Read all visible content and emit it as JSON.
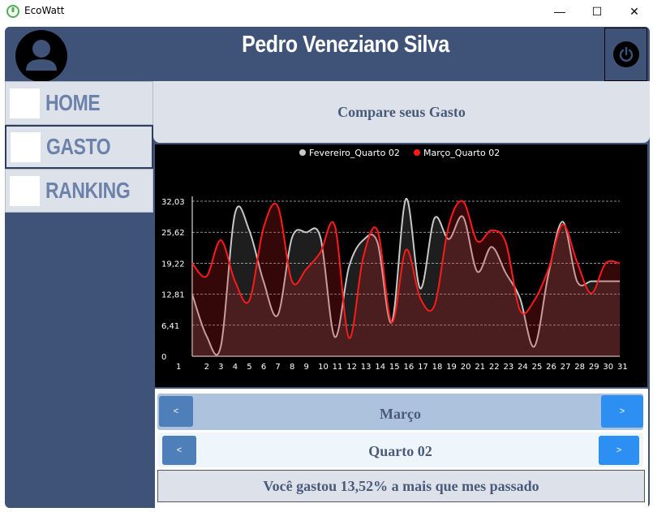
{
  "window": {
    "title": "EcoWatt",
    "min_glyph": "—",
    "max_glyph": "☐",
    "close_glyph": "✕"
  },
  "header": {
    "user_name": "Pedro Veneziano Silva",
    "avatar_icon": "user-avatar-icon",
    "power_icon": "power-icon"
  },
  "sidebar": {
    "items": [
      {
        "label": "HOME",
        "active": false
      },
      {
        "label": "GASTO",
        "active": true
      },
      {
        "label": "RANKING",
        "active": false
      }
    ]
  },
  "compare": {
    "title": "Compare seus Gasto"
  },
  "month_nav": {
    "prev": "<",
    "value": "Março",
    "next": ">"
  },
  "quarter_nav": {
    "prev": "<",
    "value": "Quarto 02",
    "next": ">"
  },
  "result": {
    "text": "Você gastou 13,52% a mais que mes passado"
  },
  "colors": {
    "frame": "#3f5378",
    "series_feb": "#c8c8c8",
    "series_mar": "#ff1a1a",
    "nav_text": "#6d82ab"
  },
  "chart_data": {
    "type": "area",
    "legend_position": "top-center",
    "grid": true,
    "x": [
      1,
      2,
      3,
      4,
      5,
      6,
      7,
      8,
      9,
      10,
      11,
      12,
      13,
      14,
      15,
      16,
      17,
      18,
      19,
      20,
      21,
      22,
      23,
      24,
      25,
      26,
      27,
      28,
      29,
      30,
      31
    ],
    "x_tick_labels": [
      "1",
      "2",
      "3",
      "4",
      "5",
      "6",
      "7",
      "8",
      "9",
      "10",
      "11",
      "12",
      "13",
      "14",
      "15",
      "16",
      "17",
      "18",
      "19",
      "20",
      "21",
      "22",
      "23",
      "24",
      "25",
      "26",
      "27",
      "28",
      "29",
      "30",
      "31"
    ],
    "y_tick_labels": [
      "0",
      "6,41",
      "12,81",
      "19,22",
      "25,62",
      "32,03"
    ],
    "y_ticks": [
      0,
      6.41,
      12.81,
      19.22,
      25.62,
      32.03
    ],
    "ylim": [
      0,
      32.03
    ],
    "series": [
      {
        "name": "Fevereiro_Quarto 02",
        "values": [
          12.8,
          4.2,
          2,
          29.5,
          26,
          15.5,
          8.5,
          24.5,
          25.6,
          24.5,
          4,
          18.5,
          24,
          23.5,
          7,
          32.5,
          14,
          28.5,
          24.2,
          28.8,
          17.5,
          22.6,
          17.2,
          12,
          2,
          17,
          27.8,
          15.5,
          15.5,
          15.5,
          15.5
        ]
      },
      {
        "name": "Março_Quarto 02",
        "values": [
          19.2,
          16.5,
          24,
          15.5,
          11.5,
          26.5,
          31,
          15.5,
          18,
          21.5,
          27,
          3.8,
          20.5,
          26,
          7,
          22,
          12,
          10.5,
          27,
          32,
          23.8,
          26,
          23.5,
          9.5,
          11.5,
          18,
          27.2,
          19.5,
          13,
          19.2,
          19.2
        ]
      }
    ]
  }
}
